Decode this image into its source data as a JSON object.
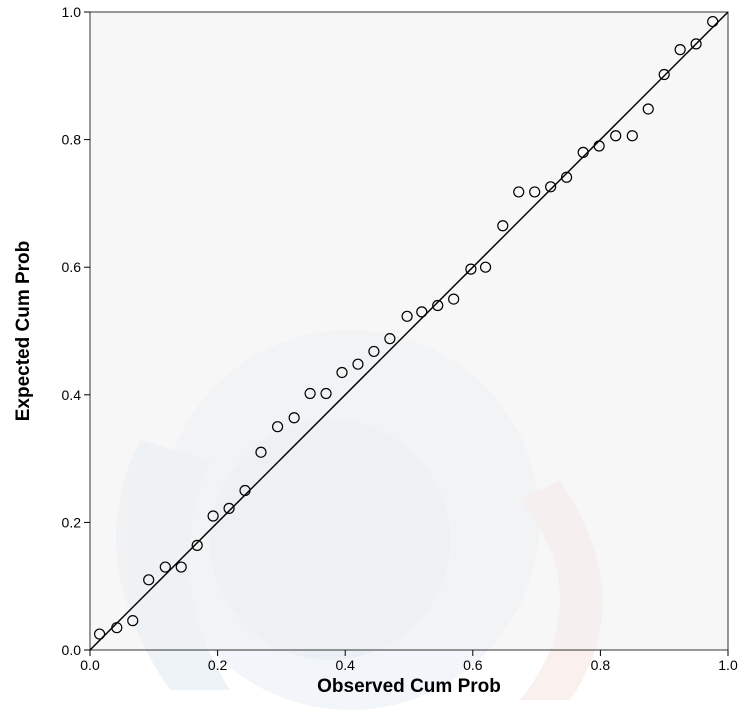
{
  "chart_data": {
    "type": "scatter",
    "title": "",
    "xlabel": "Observed Cum Prob",
    "ylabel": "Expected Cum Prob",
    "xlim": [
      0,
      1
    ],
    "ylim": [
      0,
      1
    ],
    "xticks": [
      "0.0",
      "0.2",
      "0.4",
      "0.6",
      "0.8",
      "1.0"
    ],
    "yticks": [
      "0.0",
      "0.2",
      "0.4",
      "0.6",
      "0.8",
      "1.0"
    ],
    "grid": false,
    "reference_line": {
      "from": [
        0,
        0
      ],
      "to": [
        1,
        1
      ]
    },
    "colors": {
      "plot_bg": "#f0f0f0",
      "marker": "#000000",
      "line": "#000000"
    },
    "series": [
      {
        "points": [
          [
            0.015,
            0.025
          ],
          [
            0.042,
            0.035
          ],
          [
            0.067,
            0.046
          ],
          [
            0.092,
            0.11
          ],
          [
            0.118,
            0.13
          ],
          [
            0.143,
            0.13
          ],
          [
            0.168,
            0.164
          ],
          [
            0.193,
            0.21
          ],
          [
            0.218,
            0.222
          ],
          [
            0.243,
            0.25
          ],
          [
            0.268,
            0.31
          ],
          [
            0.294,
            0.35
          ],
          [
            0.32,
            0.364
          ],
          [
            0.345,
            0.402
          ],
          [
            0.37,
            0.402
          ],
          [
            0.395,
            0.435
          ],
          [
            0.42,
            0.448
          ],
          [
            0.445,
            0.468
          ],
          [
            0.47,
            0.488
          ],
          [
            0.497,
            0.523
          ],
          [
            0.52,
            0.53
          ],
          [
            0.545,
            0.54
          ],
          [
            0.57,
            0.55
          ],
          [
            0.597,
            0.597
          ],
          [
            0.62,
            0.6
          ],
          [
            0.647,
            0.665
          ],
          [
            0.672,
            0.718
          ],
          [
            0.697,
            0.718
          ],
          [
            0.722,
            0.726
          ],
          [
            0.747,
            0.741
          ],
          [
            0.773,
            0.78
          ],
          [
            0.798,
            0.79
          ],
          [
            0.824,
            0.806
          ],
          [
            0.85,
            0.806
          ],
          [
            0.875,
            0.848
          ],
          [
            0.9,
            0.902
          ],
          [
            0.925,
            0.941
          ],
          [
            0.95,
            0.95
          ],
          [
            0.976,
            0.985
          ]
        ]
      }
    ]
  }
}
